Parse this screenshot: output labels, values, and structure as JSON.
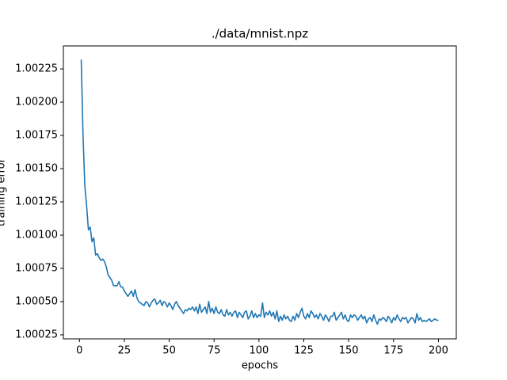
{
  "chart_data": {
    "type": "line",
    "title": "./data/mnist.npz",
    "x_label": "epochs",
    "y_label": "training error",
    "x": [
      1,
      2,
      3,
      4,
      5,
      6,
      7,
      8,
      9,
      10,
      11,
      12,
      13,
      14,
      15,
      16,
      17,
      18,
      19,
      20,
      21,
      22,
      23,
      24,
      25,
      26,
      27,
      28,
      29,
      30,
      31,
      32,
      33,
      34,
      35,
      36,
      37,
      38,
      39,
      40,
      41,
      42,
      43,
      44,
      45,
      46,
      47,
      48,
      49,
      50,
      51,
      52,
      53,
      54,
      55,
      56,
      57,
      58,
      59,
      60,
      61,
      62,
      63,
      64,
      65,
      66,
      67,
      68,
      69,
      70,
      71,
      72,
      73,
      74,
      75,
      76,
      77,
      78,
      79,
      80,
      81,
      82,
      83,
      84,
      85,
      86,
      87,
      88,
      89,
      90,
      91,
      92,
      93,
      94,
      95,
      96,
      97,
      98,
      99,
      100,
      101,
      102,
      103,
      104,
      105,
      106,
      107,
      108,
      109,
      110,
      111,
      112,
      113,
      114,
      115,
      116,
      117,
      118,
      119,
      120,
      121,
      122,
      123,
      124,
      125,
      126,
      127,
      128,
      129,
      130,
      131,
      132,
      133,
      134,
      135,
      136,
      137,
      138,
      139,
      140,
      141,
      142,
      143,
      144,
      145,
      146,
      147,
      148,
      149,
      150,
      151,
      152,
      153,
      154,
      155,
      156,
      157,
      158,
      159,
      160,
      161,
      162,
      163,
      164,
      165,
      166,
      167,
      168,
      169,
      170,
      171,
      172,
      173,
      174,
      175,
      176,
      177,
      178,
      179,
      180,
      181,
      182,
      183,
      184,
      185,
      186,
      187,
      188,
      189,
      190,
      191,
      192,
      193,
      194,
      195,
      196,
      197,
      198,
      199,
      200
    ],
    "series": [
      {
        "color": "#1f77b4",
        "values": [
          1.00232,
          1.00175,
          1.00137,
          1.00122,
          1.00104,
          1.00106,
          1.00095,
          1.00098,
          1.00085,
          1.00086,
          1.00083,
          1.00081,
          1.00082,
          1.0008,
          1.00076,
          1.0007,
          1.00068,
          1.00066,
          1.00062,
          1.00062,
          1.00062,
          1.00065,
          1.00061,
          1.00061,
          1.00058,
          1.00056,
          1.00054,
          1.00056,
          1.00058,
          1.00054,
          1.00059,
          1.00053,
          1.0005,
          1.00049,
          1.00048,
          1.00047,
          1.0005,
          1.00049,
          1.00046,
          1.00049,
          1.00051,
          1.00052,
          1.00048,
          1.00049,
          1.00051,
          1.00047,
          1.0005,
          1.00049,
          1.00046,
          1.00049,
          1.00047,
          1.00044,
          1.00048,
          1.0005,
          1.00047,
          1.00045,
          1.00043,
          1.00041,
          1.00044,
          1.00043,
          1.00045,
          1.00044,
          1.00046,
          1.00043,
          1.00046,
          1.00041,
          1.00048,
          1.00042,
          1.00044,
          1.00046,
          1.00041,
          1.0005,
          1.00042,
          1.00045,
          1.00041,
          1.00046,
          1.00042,
          1.00041,
          1.00044,
          1.0004,
          1.00039,
          1.00044,
          1.0004,
          1.00042,
          1.00039,
          1.00042,
          1.00043,
          1.00038,
          1.00042,
          1.0004,
          1.00038,
          1.00042,
          1.00043,
          1.00037,
          1.00039,
          1.00043,
          1.00038,
          1.00041,
          1.00038,
          1.0004,
          1.00039,
          1.00049,
          1.00038,
          1.00042,
          1.0004,
          1.00043,
          1.00039,
          1.00042,
          1.00037,
          1.00043,
          1.00035,
          1.00039,
          1.00036,
          1.0004,
          1.00037,
          1.00039,
          1.00036,
          1.00035,
          1.00039,
          1.00036,
          1.00041,
          1.00038,
          1.00042,
          1.00045,
          1.00039,
          1.00037,
          1.00041,
          1.00038,
          1.00043,
          1.00041,
          1.00038,
          1.0004,
          1.00037,
          1.00041,
          1.00039,
          1.00036,
          1.0004,
          1.00038,
          1.00035,
          1.00039,
          1.00039,
          1.00042,
          1.00036,
          1.00038,
          1.0004,
          1.00042,
          1.00037,
          1.0004,
          1.00036,
          1.00035,
          1.0004,
          1.00038,
          1.0004,
          1.00039,
          1.00036,
          1.00038,
          1.0004,
          1.00037,
          1.00039,
          1.00034,
          1.00037,
          1.00038,
          1.00035,
          1.0004,
          1.00036,
          1.00033,
          1.00037,
          1.00036,
          1.00038,
          1.00037,
          1.00035,
          1.00039,
          1.00037,
          1.00034,
          1.00038,
          1.00036,
          1.0004,
          1.00037,
          1.00035,
          1.00038,
          1.00037,
          1.00038,
          1.00034,
          1.00036,
          1.00038,
          1.00037,
          1.00034,
          1.00041,
          1.00036,
          1.00038,
          1.00035,
          1.00036,
          1.00035,
          1.00036,
          1.00037,
          1.00035,
          1.00036,
          1.00037,
          1.00036,
          1.00036
        ]
      }
    ],
    "xlim": [
      -8.95,
      209.95
    ],
    "ylim": [
      1.00022,
      1.002423
    ],
    "xticks": [
      0,
      25,
      50,
      75,
      100,
      125,
      150,
      175,
      200
    ],
    "yticks": [
      1.00025,
      {
        "value": 1.0005,
        "label": "1.00050"
      },
      1.00075,
      {
        "value": 1.001,
        "label": "1.00100"
      },
      1.00125,
      {
        "value": 1.0015,
        "label": "1.00150"
      },
      1.00175,
      {
        "value": 1.002,
        "label": "1.00200"
      },
      1.00225
    ],
    "grid": false
  }
}
